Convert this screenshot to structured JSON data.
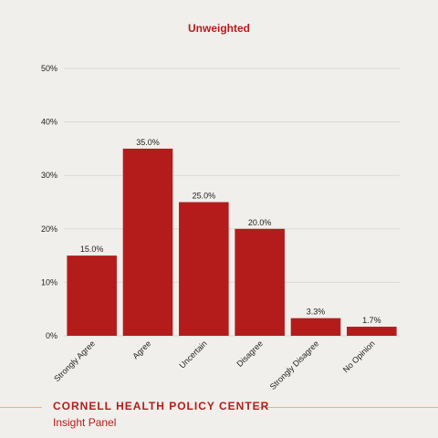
{
  "chart_data": {
    "type": "bar",
    "title": "Unweighted",
    "categories": [
      "Strongly Agree",
      "Agree",
      "Uncertain",
      "Disagree",
      "Strongly Disagree",
      "No Opinion"
    ],
    "values": [
      15.0,
      35.0,
      25.0,
      20.0,
      3.3,
      1.7
    ],
    "value_labels": [
      "15.0%",
      "35.0%",
      "25.0%",
      "20.0%",
      "3.3%",
      "1.7%"
    ],
    "ylim": [
      0,
      50
    ],
    "yticks": [
      "0%",
      "10%",
      "20%",
      "30%",
      "40%",
      "50%"
    ],
    "grid": true,
    "xlabel": "",
    "ylabel": ""
  },
  "footer": {
    "organization": "CORNELL HEALTH POLICY CENTER",
    "subtitle": "Insight Panel"
  },
  "colors": {
    "bar": "#b41c1c",
    "title": "#b41c1c",
    "background": "#f1efeb",
    "grid": "#dcdad5",
    "text": "#222222",
    "footer_org": "#b41c1c",
    "footer_rule": "#f0b46e"
  }
}
